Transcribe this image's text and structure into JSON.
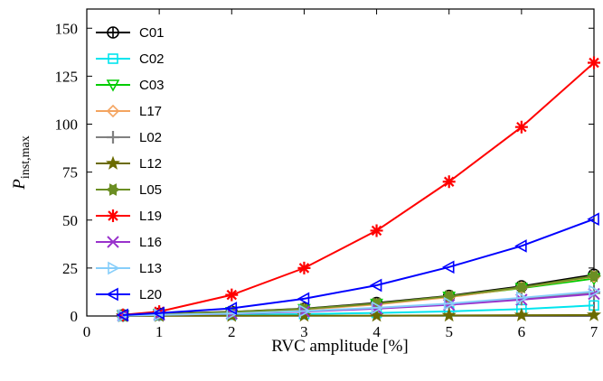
{
  "chart_data": {
    "type": "line",
    "title": "",
    "xlabel": "RVC amplitude [%]",
    "ylabel_main": "P",
    "ylabel_sub": "inst,max",
    "xlim": [
      0,
      7
    ],
    "ylim": [
      0,
      160
    ],
    "xticks": [
      0,
      1,
      2,
      3,
      4,
      5,
      6,
      7
    ],
    "yticks": [
      0,
      25,
      50,
      75,
      100,
      125,
      150
    ],
    "grid": false,
    "legend_position": "top-left",
    "x": [
      0.5,
      1,
      2,
      3,
      4,
      5,
      6,
      7
    ],
    "series": [
      {
        "name": "C01",
        "color": "#000000",
        "marker": "circle-plus",
        "values": [
          0.4,
          1.2,
          2.2,
          3.8,
          6.8,
          10.5,
          15.5,
          21.5
        ]
      },
      {
        "name": "C02",
        "color": "#00e5ee",
        "marker": "square",
        "values": [
          0.1,
          0.3,
          0.6,
          1.0,
          1.6,
          2.4,
          3.6,
          5.5
        ]
      },
      {
        "name": "C03",
        "color": "#00cc00",
        "marker": "triangle-down",
        "values": [
          0.3,
          0.9,
          2.0,
          3.5,
          6.3,
          10.0,
          14.5,
          19.5
        ]
      },
      {
        "name": "L17",
        "color": "#f4a460",
        "marker": "diamond",
        "values": [
          0.3,
          0.8,
          1.9,
          3.3,
          6.0,
          9.8,
          14.8,
          20.5
        ]
      },
      {
        "name": "L02",
        "color": "#808080",
        "marker": "plus",
        "values": [
          0.2,
          0.6,
          1.3,
          2.5,
          4.0,
          6.0,
          8.8,
          12.0
        ]
      },
      {
        "name": "L12",
        "color": "#6b6b00",
        "marker": "star",
        "values": [
          0.0,
          0.1,
          0.1,
          0.2,
          0.2,
          0.3,
          0.4,
          0.5
        ]
      },
      {
        "name": "L05",
        "color": "#6b8e23",
        "marker": "star-burst",
        "values": [
          0.3,
          1.0,
          2.1,
          3.7,
          6.5,
          10.3,
          15.0,
          20.8
        ]
      },
      {
        "name": "L19",
        "color": "#ff0000",
        "marker": "asterisk",
        "values": [
          0.6,
          2.3,
          11.0,
          25.0,
          44.5,
          70.0,
          98.5,
          132.0
        ]
      },
      {
        "name": "L16",
        "color": "#9932cc",
        "marker": "cross",
        "values": [
          0.2,
          0.6,
          1.2,
          2.3,
          3.8,
          5.8,
          8.5,
          11.5
        ]
      },
      {
        "name": "L13",
        "color": "#87cefa",
        "marker": "triangle-right",
        "values": [
          0.2,
          0.6,
          1.3,
          2.6,
          4.3,
          6.5,
          9.5,
          12.8
        ]
      },
      {
        "name": "L20",
        "color": "#0000ff",
        "marker": "triangle-left",
        "values": [
          0.5,
          1.5,
          4.0,
          9.0,
          16.0,
          25.5,
          36.5,
          50.5
        ]
      }
    ]
  }
}
